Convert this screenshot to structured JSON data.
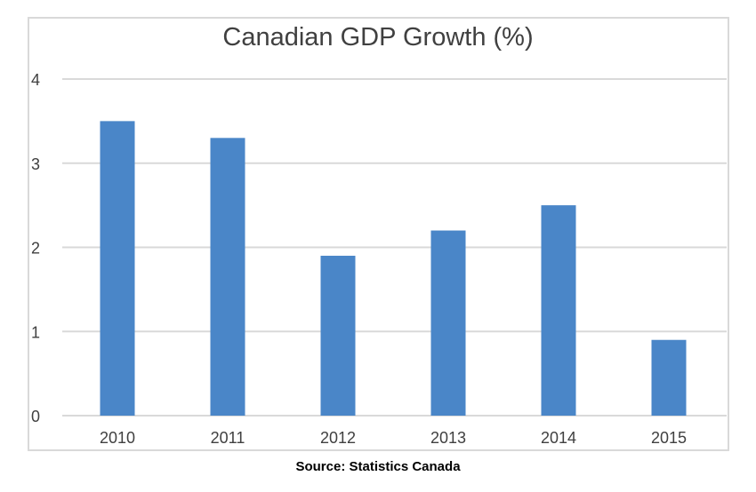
{
  "chart_data": {
    "type": "bar",
    "title": "Canadian GDP Growth (%)",
    "categories": [
      "2010",
      "2011",
      "2012",
      "2013",
      "2014",
      "2015"
    ],
    "values": [
      3.5,
      3.3,
      1.9,
      2.2,
      2.5,
      0.9
    ],
    "xlabel": "",
    "ylabel": "",
    "ylim": [
      0,
      4
    ],
    "yticks": [
      "0",
      "1",
      "2",
      "3",
      "4"
    ],
    "grid": true,
    "bar_color": "#4a86c8",
    "source": "Source: Statistics Canada"
  }
}
